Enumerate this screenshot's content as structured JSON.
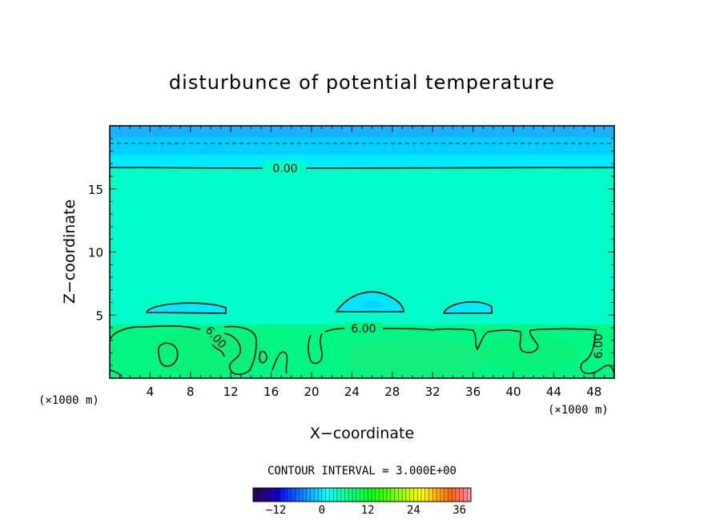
{
  "chart_data": {
    "type": "heatmap",
    "title": "disturbunce of potential temperature",
    "xlabel": "X−coordinate",
    "ylabel": "Z−coordinate",
    "x_unit_left": "(×1000 m)",
    "x_unit_right": "(×1000 m)",
    "xlim": [
      0,
      50
    ],
    "ylim": [
      0,
      20
    ],
    "x_ticks": [
      4,
      8,
      12,
      16,
      20,
      24,
      28,
      32,
      36,
      40,
      44,
      48
    ],
    "y_ticks": [
      5,
      10,
      15
    ],
    "contour_interval_text": "CONTOUR INTERVAL = 3.000E+00",
    "contour_levels": [
      0,
      6
    ],
    "contour_labels": [
      "0.00",
      "6.00",
      "6.00",
      "6.00"
    ],
    "dashed_reference_z": 18.6,
    "zero_contour_z": 16.7,
    "six_contour_base_z": 4.5,
    "colorbar": {
      "range": [
        -18,
        39
      ],
      "tick_values": [
        -12,
        0,
        12,
        24,
        36
      ],
      "tick_labels": [
        "−12",
        "0",
        "12",
        "24",
        "36"
      ]
    },
    "colors": {
      "upper_band": "#1ab0ff",
      "band_2": "#00cfff",
      "band_3": "#00eaff",
      "mid_layer": "#00ffc8",
      "bubble": "#00e8ff",
      "low_layer": "#00f582",
      "low_core": "#10ee70"
    }
  }
}
